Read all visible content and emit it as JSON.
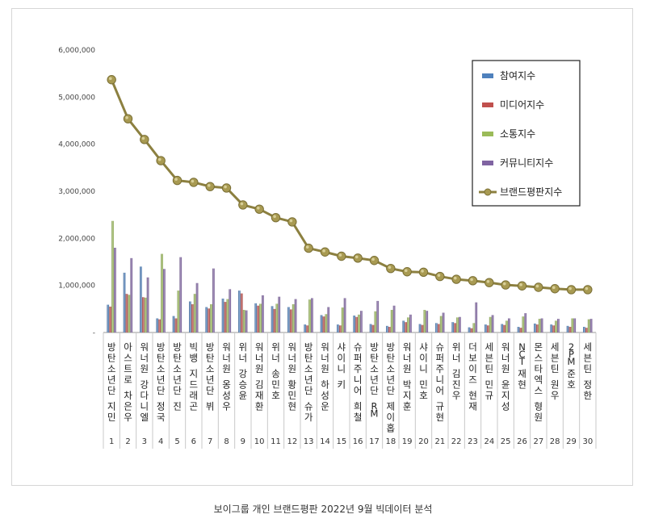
{
  "caption": "보이그룹 개인 브랜드평판  2022년 9월 빅데이터 분석",
  "chart_data": {
    "type": "bar",
    "title": "",
    "xlabel": "",
    "ylabel": "",
    "ylim": [
      0,
      6000000
    ],
    "yticks": [
      0,
      1000000,
      2000000,
      3000000,
      4000000,
      5000000,
      6000000
    ],
    "ytick_labels": [
      "-",
      "1,000,000",
      "2,000,000",
      "3,000,000",
      "4,000,000",
      "5,000,000",
      "6,000,000"
    ],
    "grid": false,
    "legend_position": "top-right",
    "categories": [
      "방탄소년단 지민",
      "아스트로 차은우",
      "워너원 강다니엘",
      "방탄소년단 정국",
      "방탄소년단 진",
      "빅뱅 지드래곤",
      "방탄소년단 뷔",
      "워너원 옹성우",
      "위너 강승윤",
      "워너원 김재환",
      "위너 송민호",
      "워너원 황민현",
      "방탄소년단 슈가",
      "워너원 하성운",
      "샤이니 키",
      "슈퍼주니어 희철",
      "방탄소년단 RM",
      "방탄소년단 제이홉",
      "워너원 박지훈",
      "샤이니 민호",
      "슈퍼주니어 규현",
      "위너 김진우",
      "더보이즈 현재",
      "세븐틴 민규",
      "워너원 윤지성",
      "NCT 재현",
      "몬스타엑스 형원",
      "세븐틴 원우",
      "2PM 준호",
      "세븐틴 정한"
    ],
    "ranks": [
      "1",
      "2",
      "3",
      "4",
      "5",
      "6",
      "7",
      "8",
      "9",
      "10",
      "11",
      "12",
      "13",
      "14",
      "15",
      "16",
      "17",
      "18",
      "19",
      "20",
      "21",
      "22",
      "23",
      "24",
      "25",
      "26",
      "27",
      "28",
      "29",
      "30"
    ],
    "series": [
      {
        "name": "참여지수",
        "kind": "bar",
        "color": "#4f81bd",
        "values": [
          590000,
          1270000,
          1400000,
          300000,
          350000,
          660000,
          540000,
          720000,
          890000,
          620000,
          560000,
          540000,
          170000,
          370000,
          170000,
          360000,
          180000,
          140000,
          250000,
          180000,
          200000,
          220000,
          110000,
          170000,
          180000,
          120000,
          190000,
          170000,
          140000,
          120000
        ]
      },
      {
        "name": "미디어지수",
        "kind": "bar",
        "color": "#c0504d",
        "values": [
          550000,
          820000,
          750000,
          280000,
          300000,
          600000,
          510000,
          650000,
          830000,
          570000,
          500000,
          490000,
          150000,
          340000,
          150000,
          330000,
          160000,
          120000,
          220000,
          160000,
          180000,
          200000,
          90000,
          150000,
          160000,
          100000,
          170000,
          150000,
          120000,
          100000
        ]
      },
      {
        "name": "소통지수",
        "kind": "bar",
        "color": "#9bbb59",
        "values": [
          2370000,
          800000,
          740000,
          1670000,
          890000,
          820000,
          600000,
          710000,
          480000,
          610000,
          610000,
          600000,
          700000,
          390000,
          530000,
          380000,
          450000,
          480000,
          320000,
          480000,
          350000,
          320000,
          200000,
          330000,
          250000,
          340000,
          290000,
          250000,
          300000,
          280000
        ]
      },
      {
        "name": "커뮤니티지수",
        "kind": "bar",
        "color": "#8064a2",
        "values": [
          1800000,
          1580000,
          1170000,
          1350000,
          1600000,
          1050000,
          1360000,
          920000,
          470000,
          790000,
          760000,
          710000,
          730000,
          540000,
          730000,
          460000,
          670000,
          570000,
          380000,
          460000,
          420000,
          330000,
          640000,
          370000,
          300000,
          410000,
          300000,
          290000,
          300000,
          290000
        ]
      },
      {
        "name": "브랜드평판지수",
        "kind": "line",
        "color": "#8c8040",
        "values": [
          5370000,
          4540000,
          4100000,
          3650000,
          3230000,
          3190000,
          3100000,
          3070000,
          2710000,
          2620000,
          2440000,
          2350000,
          1790000,
          1710000,
          1620000,
          1580000,
          1530000,
          1360000,
          1290000,
          1280000,
          1190000,
          1130000,
          1100000,
          1060000,
          1010000,
          990000,
          960000,
          930000,
          910000,
          910000
        ]
      }
    ]
  }
}
